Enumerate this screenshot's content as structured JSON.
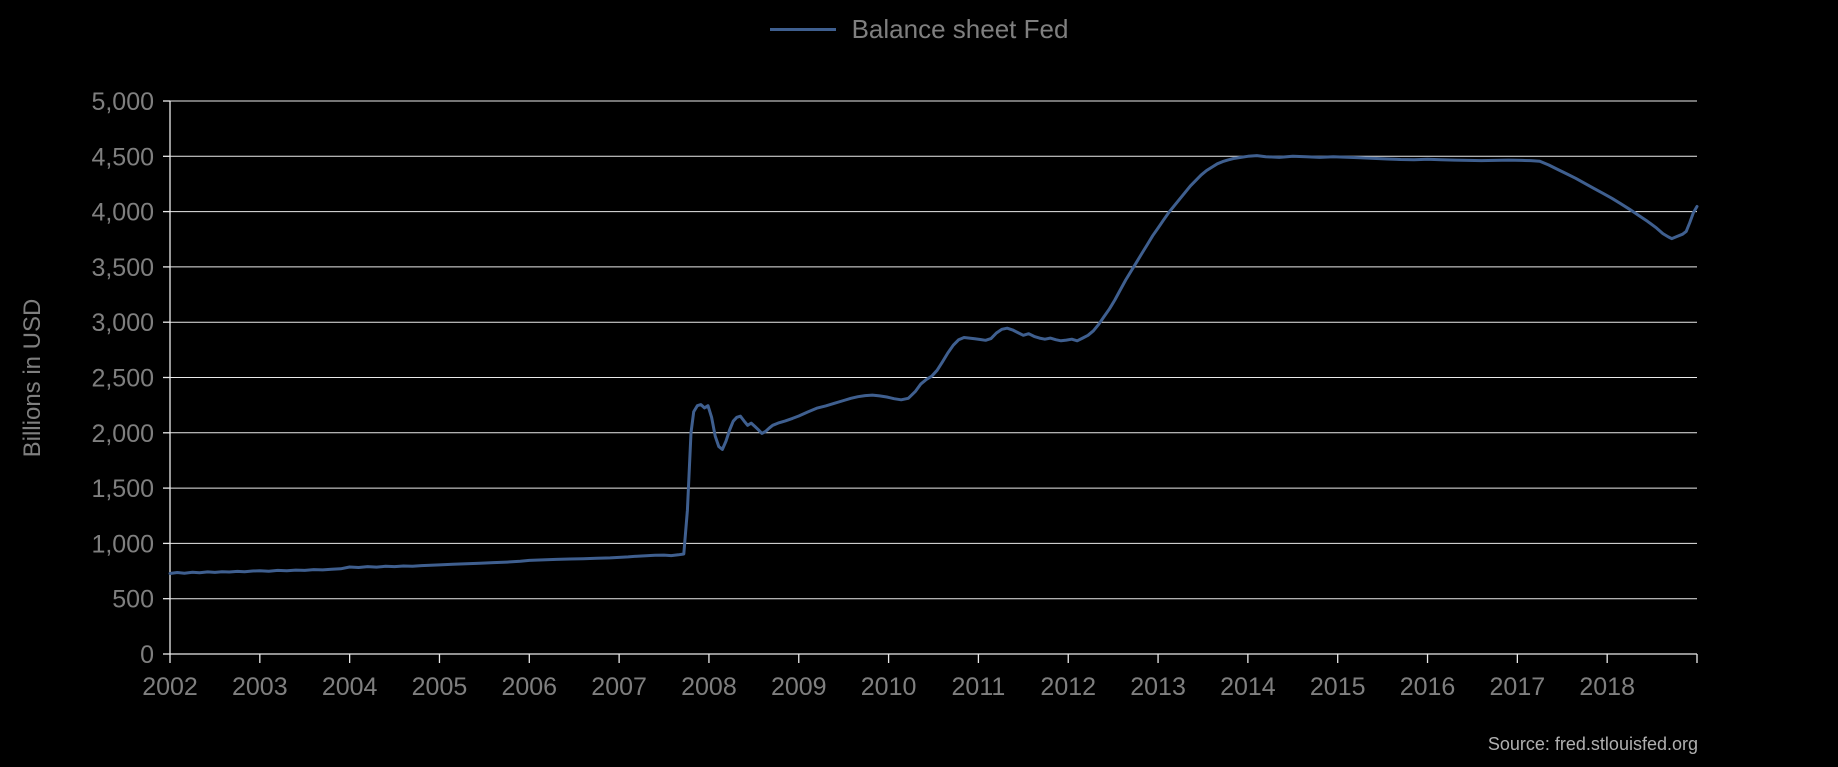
{
  "legend": {
    "label": "Balance sheet Fed"
  },
  "y_axis_title": "Billions in USD",
  "source": "Source: fred.stlouisfed.org",
  "colors": {
    "background": "#000000",
    "series": "#3f5f8f",
    "grid": "#eaeaea",
    "axis_text": "#7f7f7f"
  },
  "chart_data": {
    "type": "line",
    "title": "",
    "xlabel": "",
    "ylabel": "Billions in USD",
    "legend_position": "top-center",
    "grid": "horizontal",
    "xlim": [
      2002,
      2019
    ],
    "ylim": [
      0,
      5000
    ],
    "y_ticks": [
      0,
      500,
      1000,
      1500,
      2000,
      2500,
      3000,
      3500,
      4000,
      4500,
      5000
    ],
    "x_ticks": [
      2002,
      2003,
      2004,
      2005,
      2006,
      2007,
      2008,
      2009,
      2010,
      2011,
      2012,
      2013,
      2014,
      2015,
      2016,
      2017,
      2018
    ],
    "series": [
      {
        "name": "Balance sheet Fed",
        "color": "#3f5f8f",
        "points": [
          [
            2002.0,
            728
          ],
          [
            2002.08,
            737
          ],
          [
            2002.16,
            731
          ],
          [
            2002.25,
            739
          ],
          [
            2002.33,
            735
          ],
          [
            2002.42,
            742
          ],
          [
            2002.5,
            738
          ],
          [
            2002.58,
            744
          ],
          [
            2002.66,
            741
          ],
          [
            2002.75,
            747
          ],
          [
            2002.83,
            744
          ],
          [
            2002.92,
            750
          ],
          [
            2003.0,
            753
          ],
          [
            2003.1,
            748
          ],
          [
            2003.2,
            756
          ],
          [
            2003.3,
            752
          ],
          [
            2003.4,
            759
          ],
          [
            2003.5,
            756
          ],
          [
            2003.6,
            763
          ],
          [
            2003.7,
            760
          ],
          [
            2003.8,
            767
          ],
          [
            2003.9,
            770
          ],
          [
            2004.0,
            787
          ],
          [
            2004.1,
            782
          ],
          [
            2004.2,
            790
          ],
          [
            2004.3,
            786
          ],
          [
            2004.4,
            793
          ],
          [
            2004.5,
            790
          ],
          [
            2004.6,
            796
          ],
          [
            2004.7,
            793
          ],
          [
            2004.8,
            799
          ],
          [
            2004.9,
            802
          ],
          [
            2005.0,
            806
          ],
          [
            2005.15,
            811
          ],
          [
            2005.3,
            816
          ],
          [
            2005.45,
            821
          ],
          [
            2005.6,
            826
          ],
          [
            2005.75,
            831
          ],
          [
            2005.9,
            838
          ],
          [
            2006.0,
            846
          ],
          [
            2006.15,
            851
          ],
          [
            2006.3,
            855
          ],
          [
            2006.45,
            859
          ],
          [
            2006.6,
            862
          ],
          [
            2006.75,
            865
          ],
          [
            2006.9,
            869
          ],
          [
            2007.0,
            873
          ],
          [
            2007.1,
            878
          ],
          [
            2007.2,
            884
          ],
          [
            2007.3,
            888
          ],
          [
            2007.4,
            892
          ],
          [
            2007.5,
            894
          ],
          [
            2007.58,
            890
          ],
          [
            2007.66,
            897
          ],
          [
            2007.72,
            904
          ],
          [
            2007.76,
            1300
          ],
          [
            2007.8,
            2000
          ],
          [
            2007.83,
            2190
          ],
          [
            2007.87,
            2245
          ],
          [
            2007.91,
            2255
          ],
          [
            2007.95,
            2225
          ],
          [
            2007.99,
            2245
          ],
          [
            2008.03,
            2140
          ],
          [
            2008.07,
            1970
          ],
          [
            2008.11,
            1875
          ],
          [
            2008.15,
            1850
          ],
          [
            2008.19,
            1925
          ],
          [
            2008.23,
            2025
          ],
          [
            2008.27,
            2105
          ],
          [
            2008.31,
            2140
          ],
          [
            2008.35,
            2150
          ],
          [
            2008.39,
            2108
          ],
          [
            2008.43,
            2068
          ],
          [
            2008.47,
            2088
          ],
          [
            2008.51,
            2058
          ],
          [
            2008.55,
            2028
          ],
          [
            2008.59,
            1995
          ],
          [
            2008.63,
            2012
          ],
          [
            2008.67,
            2042
          ],
          [
            2008.71,
            2068
          ],
          [
            2008.77,
            2088
          ],
          [
            2008.85,
            2108
          ],
          [
            2008.93,
            2130
          ],
          [
            2009.0,
            2152
          ],
          [
            2009.1,
            2188
          ],
          [
            2009.2,
            2222
          ],
          [
            2009.3,
            2243
          ],
          [
            2009.4,
            2268
          ],
          [
            2009.5,
            2292
          ],
          [
            2009.58,
            2312
          ],
          [
            2009.66,
            2326
          ],
          [
            2009.74,
            2336
          ],
          [
            2009.82,
            2341
          ],
          [
            2009.9,
            2334
          ],
          [
            2009.98,
            2324
          ],
          [
            2010.06,
            2308
          ],
          [
            2010.14,
            2298
          ],
          [
            2010.22,
            2312
          ],
          [
            2010.3,
            2375
          ],
          [
            2010.36,
            2442
          ],
          [
            2010.42,
            2482
          ],
          [
            2010.48,
            2512
          ],
          [
            2010.54,
            2565
          ],
          [
            2010.6,
            2642
          ],
          [
            2010.66,
            2722
          ],
          [
            2010.72,
            2792
          ],
          [
            2010.78,
            2842
          ],
          [
            2010.84,
            2862
          ],
          [
            2010.9,
            2856
          ],
          [
            2010.96,
            2850
          ],
          [
            2011.02,
            2844
          ],
          [
            2011.08,
            2836
          ],
          [
            2011.14,
            2852
          ],
          [
            2011.2,
            2902
          ],
          [
            2011.26,
            2936
          ],
          [
            2011.32,
            2946
          ],
          [
            2011.38,
            2930
          ],
          [
            2011.44,
            2906
          ],
          [
            2011.5,
            2882
          ],
          [
            2011.56,
            2896
          ],
          [
            2011.62,
            2872
          ],
          [
            2011.68,
            2856
          ],
          [
            2011.74,
            2846
          ],
          [
            2011.8,
            2856
          ],
          [
            2011.86,
            2842
          ],
          [
            2011.92,
            2832
          ],
          [
            2011.98,
            2838
          ],
          [
            2012.04,
            2846
          ],
          [
            2012.1,
            2832
          ],
          [
            2012.16,
            2856
          ],
          [
            2012.22,
            2882
          ],
          [
            2012.28,
            2922
          ],
          [
            2012.34,
            2982
          ],
          [
            2012.4,
            3052
          ],
          [
            2012.46,
            3122
          ],
          [
            2012.52,
            3202
          ],
          [
            2012.58,
            3292
          ],
          [
            2012.64,
            3382
          ],
          [
            2012.7,
            3462
          ],
          [
            2012.76,
            3542
          ],
          [
            2012.82,
            3622
          ],
          [
            2012.88,
            3702
          ],
          [
            2012.94,
            3782
          ],
          [
            2013.0,
            3852
          ],
          [
            2013.06,
            3922
          ],
          [
            2013.12,
            3992
          ],
          [
            2013.18,
            4052
          ],
          [
            2013.24,
            4112
          ],
          [
            2013.3,
            4172
          ],
          [
            2013.36,
            4232
          ],
          [
            2013.42,
            4282
          ],
          [
            2013.48,
            4332
          ],
          [
            2013.54,
            4372
          ],
          [
            2013.6,
            4402
          ],
          [
            2013.66,
            4432
          ],
          [
            2013.72,
            4452
          ],
          [
            2013.78,
            4467
          ],
          [
            2013.84,
            4480
          ],
          [
            2013.92,
            4490
          ],
          [
            2014.0,
            4500
          ],
          [
            2014.1,
            4506
          ],
          [
            2014.2,
            4496
          ],
          [
            2014.35,
            4490
          ],
          [
            2014.5,
            4500
          ],
          [
            2014.65,
            4496
          ],
          [
            2014.8,
            4490
          ],
          [
            2014.95,
            4496
          ],
          [
            2015.1,
            4491
          ],
          [
            2015.25,
            4486
          ],
          [
            2015.4,
            4481
          ],
          [
            2015.55,
            4476
          ],
          [
            2015.7,
            4471
          ],
          [
            2015.85,
            4469
          ],
          [
            2016.0,
            4473
          ],
          [
            2016.15,
            4469
          ],
          [
            2016.3,
            4466
          ],
          [
            2016.45,
            4463
          ],
          [
            2016.6,
            4461
          ],
          [
            2016.75,
            4463
          ],
          [
            2016.9,
            4466
          ],
          [
            2017.05,
            4463
          ],
          [
            2017.15,
            4461
          ],
          [
            2017.25,
            4456
          ],
          [
            2017.35,
            4421
          ],
          [
            2017.45,
            4381
          ],
          [
            2017.55,
            4341
          ],
          [
            2017.65,
            4301
          ],
          [
            2017.75,
            4256
          ],
          [
            2017.85,
            4211
          ],
          [
            2017.95,
            4166
          ],
          [
            2018.05,
            4121
          ],
          [
            2018.15,
            4071
          ],
          [
            2018.25,
            4021
          ],
          [
            2018.35,
            3966
          ],
          [
            2018.45,
            3911
          ],
          [
            2018.55,
            3851
          ],
          [
            2018.62,
            3801
          ],
          [
            2018.68,
            3771
          ],
          [
            2018.72,
            3756
          ],
          [
            2018.78,
            3776
          ],
          [
            2018.84,
            3796
          ],
          [
            2018.88,
            3821
          ],
          [
            2018.92,
            3901
          ],
          [
            2018.96,
            3991
          ],
          [
            2019.0,
            4046
          ]
        ]
      }
    ]
  }
}
